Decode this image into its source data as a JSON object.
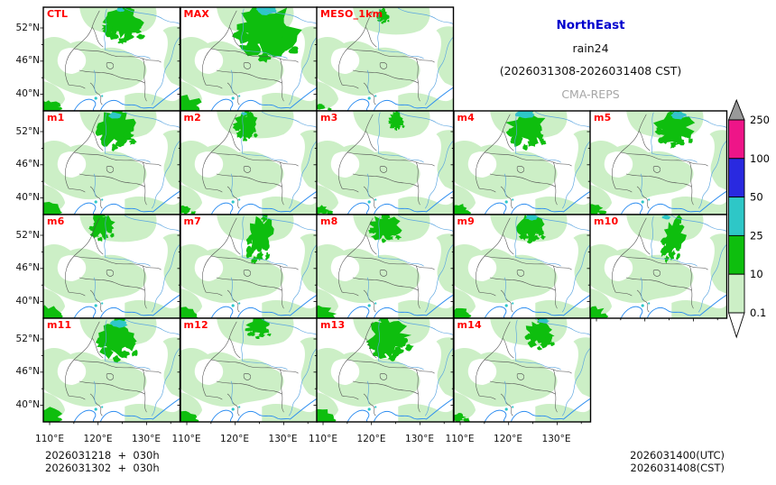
{
  "header": {
    "region": "NorthEast",
    "variable": "rain24",
    "period": "(2026031308-2026031408 CST)",
    "model": "CMA-REPS"
  },
  "axes": {
    "y_tick_labels": [
      "52°N",
      "46°N",
      "40°N"
    ],
    "x_tick_labels": [
      "110°E",
      "120°E",
      "130°E"
    ]
  },
  "colorbar": {
    "tick_labels": [
      "250",
      "100",
      "50",
      "25",
      "10",
      "0.1"
    ],
    "segment_colors": [
      "#ee1588",
      "#2929e0",
      "#2ec7c7",
      "#0ebe0e",
      "#ccefc6"
    ],
    "top_arrow_color": "#999999",
    "bottom_arrow_color": "#ffffff"
  },
  "colors": {
    "light_rain": "#ccefc6",
    "moderate_rain": "#0ebe0e",
    "heavy_rain": "#2ec7c7",
    "panel_label_red": "#ff0000",
    "title_blue": "#0000cd",
    "model_gray": "#a6a6a6",
    "province_border": "#4d4d4d",
    "river_blue": "#5aa5e0",
    "coast_blue": "#2b8cf0"
  },
  "panels": [
    {
      "label": "CTL",
      "row": 0,
      "col": 0,
      "precip": {
        "main": [
          88,
          17,
          26,
          20
        ],
        "cyan": [
          85,
          3,
          5,
          3
        ],
        "bl": 0.9,
        "rot": 0
      }
    },
    {
      "label": "MAX",
      "row": 0,
      "col": 1,
      "precip": {
        "main": [
          95,
          25,
          40,
          30
        ],
        "cyan": [
          95,
          4,
          14,
          5
        ],
        "bl": 1.3,
        "rot": 0
      }
    },
    {
      "label": "MESO_1km",
      "row": 0,
      "col": 2,
      "precip": {
        "main": [
          73,
          9,
          8,
          8
        ],
        "cyan": null,
        "bl": 0.35,
        "rot": 0
      }
    },
    {
      "label": "m1",
      "row": 1,
      "col": 0,
      "precip": {
        "main": [
          80,
          18,
          25,
          22
        ],
        "cyan": [
          79,
          5,
          9,
          4
        ],
        "bl": 1.0,
        "rot": 0
      }
    },
    {
      "label": "m2",
      "row": 1,
      "col": 1,
      "precip": {
        "main": [
          72,
          15,
          15,
          16
        ],
        "cyan": [
          70,
          3,
          4,
          2
        ],
        "bl": 0.5,
        "rot": 0
      }
    },
    {
      "label": "m3",
      "row": 1,
      "col": 2,
      "precip": {
        "main": [
          88,
          10,
          10,
          10
        ],
        "cyan": null,
        "bl": 0.6,
        "rot": 0
      }
    },
    {
      "label": "m4",
      "row": 1,
      "col": 3,
      "precip": {
        "main": [
          80,
          18,
          24,
          22
        ],
        "cyan": [
          79,
          4,
          12,
          5
        ],
        "bl": 0.8,
        "rot": 0
      }
    },
    {
      "label": "m5",
      "row": 1,
      "col": 4,
      "precip": {
        "main": [
          93,
          18,
          24,
          20
        ],
        "cyan": [
          97,
          5,
          10,
          5
        ],
        "bl": 0.7,
        "rot": 0
      }
    },
    {
      "label": "m6",
      "row": 2,
      "col": 0,
      "precip": {
        "main": [
          64,
          12,
          16,
          15
        ],
        "cyan": null,
        "bl": 1.0,
        "rot": 0
      }
    },
    {
      "label": "m7",
      "row": 2,
      "col": 1,
      "precip": {
        "main": [
          88,
          24,
          17,
          27
        ],
        "cyan": null,
        "bl": 0.9,
        "rot": 12
      }
    },
    {
      "label": "m8",
      "row": 2,
      "col": 2,
      "precip": {
        "main": [
          75,
          14,
          20,
          15
        ],
        "cyan": null,
        "bl": 1.1,
        "rot": 0
      }
    },
    {
      "label": "m9",
      "row": 2,
      "col": 3,
      "precip": {
        "main": [
          85,
          14,
          18,
          15
        ],
        "cyan": [
          86,
          3,
          8,
          4
        ],
        "bl": 0.8,
        "rot": 0
      }
    },
    {
      "label": "m10",
      "row": 2,
      "col": 4,
      "precip": {
        "main": [
          92,
          25,
          14,
          25
        ],
        "cyan": [
          84,
          3,
          6,
          3
        ],
        "bl": 0.9,
        "rot": 15
      }
    },
    {
      "label": "m11",
      "row": 3,
      "col": 0,
      "precip": {
        "main": [
          82,
          21,
          26,
          24
        ],
        "cyan": [
          84,
          6,
          11,
          5
        ],
        "bl": 1.1,
        "rot": 0
      }
    },
    {
      "label": "m12",
      "row": 3,
      "col": 1,
      "precip": {
        "main": [
          86,
          10,
          16,
          11
        ],
        "cyan": null,
        "bl": 0.9,
        "rot": 0
      }
    },
    {
      "label": "m13",
      "row": 3,
      "col": 2,
      "precip": {
        "main": [
          78,
          20,
          27,
          24
        ],
        "cyan": null,
        "bl": 1.0,
        "rot": -15
      }
    },
    {
      "label": "m14",
      "row": 3,
      "col": 3,
      "precip": {
        "main": [
          95,
          16,
          18,
          17
        ],
        "cyan": [
          99,
          3,
          7,
          3
        ],
        "bl": 0.6,
        "rot": 0
      }
    }
  ],
  "footer": {
    "left_lines": [
      "2026031218  +  030h",
      "2026031302  +  030h"
    ],
    "right_lines": [
      "2026031400(UTC)",
      "2026031408(CST)"
    ]
  }
}
